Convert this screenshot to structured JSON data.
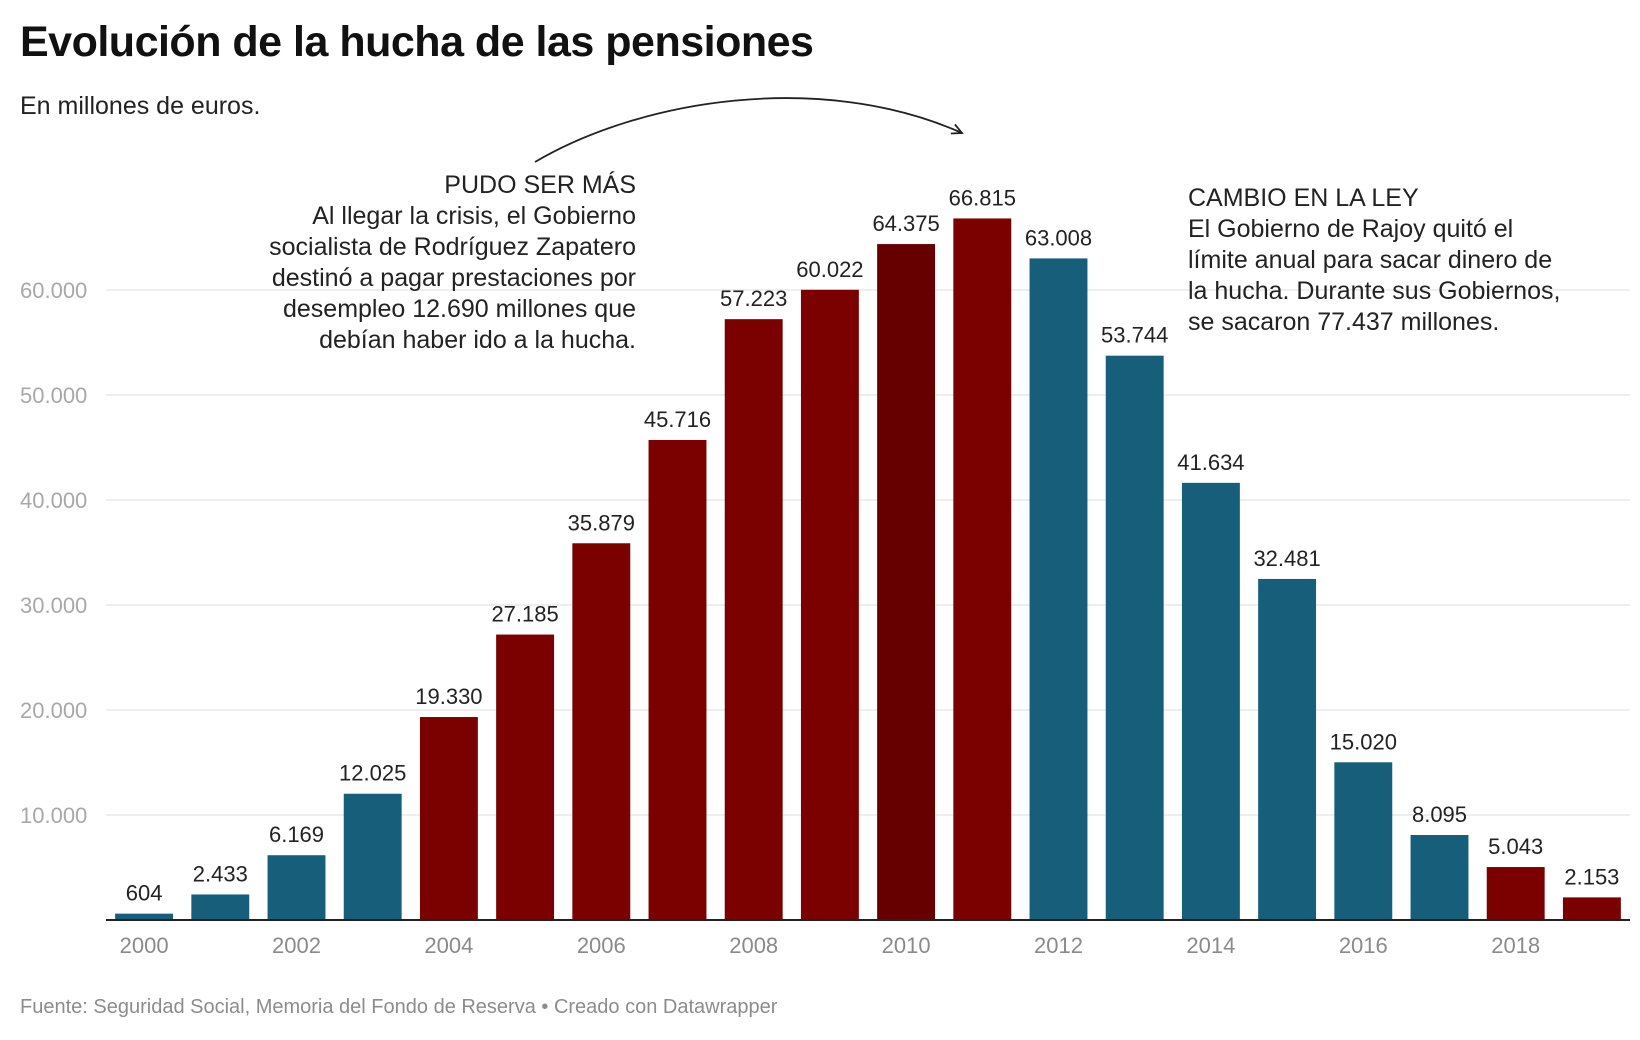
{
  "title": "Evolución de la hucha de las pensiones",
  "subtitle": "En millones de euros.",
  "annotations": {
    "left": {
      "heading": "PUDO SER MÁS",
      "lines": [
        "Al llegar la crisis, el Gobierno",
        "socialista de Rodríguez Zapatero",
        "destinó a pagar prestaciones por",
        "desempleo 12.690 millones que",
        "debían haber ido a la hucha."
      ]
    },
    "right": {
      "heading": "CAMBIO EN LA LEY",
      "lines": [
        "El Gobierno de Rajoy quitó el",
        "límite anual para sacar dinero de",
        "la hucha. Durante sus Gobiernos,",
        "se sacaron 77.437 millones."
      ]
    }
  },
  "source": "Fuente: Seguridad Social, Memoria del Fondo de Reserva • Creado con Datawrapper",
  "colors": {
    "red": "#7b0000",
    "dark_red": "#660000",
    "teal": "#175e7a"
  },
  "chart_data": {
    "type": "bar",
    "categories": [
      "2000",
      "2001",
      "2002",
      "2003",
      "2004",
      "2005",
      "2006",
      "2007",
      "2008",
      "2009",
      "2010",
      "2011",
      "2012",
      "2013",
      "2014",
      "2015",
      "2016",
      "2017",
      "2018",
      "2019"
    ],
    "values": [
      604,
      2433,
      6169,
      12025,
      19330,
      27185,
      35879,
      45716,
      57223,
      60022,
      64375,
      66815,
      63008,
      53744,
      41634,
      32481,
      15020,
      8095,
      5043,
      2153
    ],
    "value_labels": [
      "604",
      "2.433",
      "6.169",
      "12.025",
      "19.330",
      "27.185",
      "35.879",
      "45.716",
      "57.223",
      "60.022",
      "64.375",
      "66.815",
      "63.008",
      "53.744",
      "41.634",
      "32.481",
      "15.020",
      "8.095",
      "5.043",
      "2.153"
    ],
    "bar_colors": [
      "teal",
      "teal",
      "teal",
      "teal",
      "red",
      "red",
      "red",
      "red",
      "red",
      "red",
      "dark_red",
      "red",
      "teal",
      "teal",
      "teal",
      "teal",
      "teal",
      "teal",
      "red",
      "red"
    ],
    "x_tick_labels": [
      "2000",
      "2002",
      "2004",
      "2006",
      "2008",
      "2010",
      "2012",
      "2014",
      "2016",
      "2018"
    ],
    "y_ticks": [
      10000,
      20000,
      30000,
      40000,
      50000,
      60000
    ],
    "y_tick_labels": [
      "10.000",
      "20.000",
      "30.000",
      "40.000",
      "50.000",
      "60.000"
    ],
    "ylim": [
      0,
      68000
    ],
    "grid": true,
    "xlabel": "",
    "ylabel": ""
  }
}
